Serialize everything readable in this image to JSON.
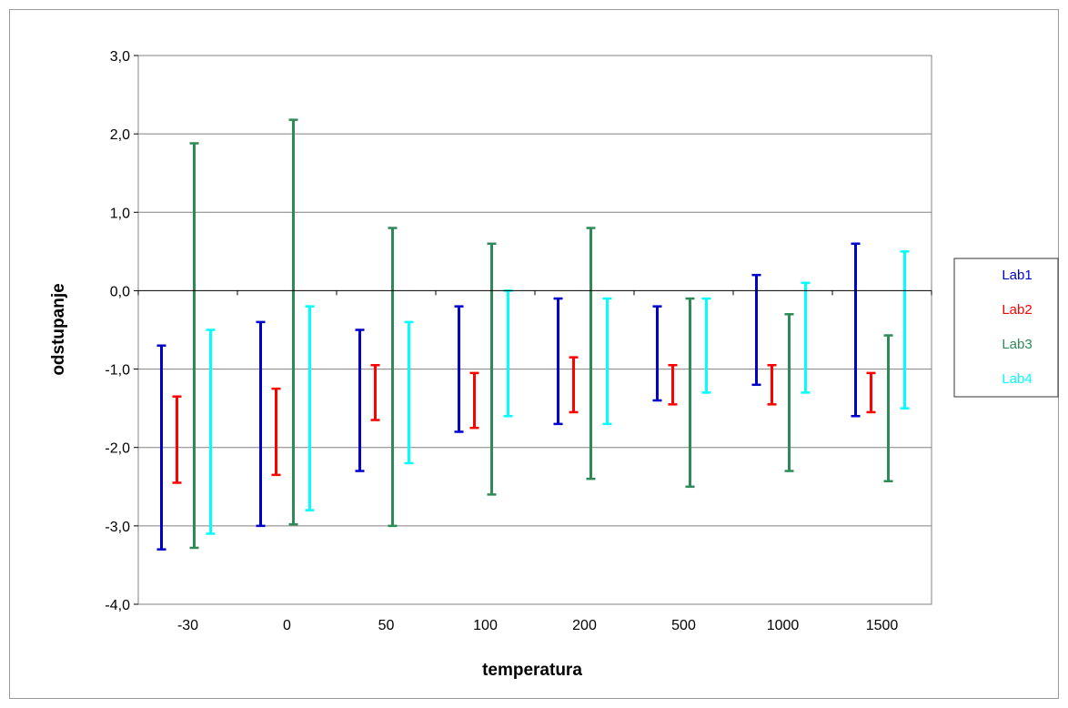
{
  "chart_data": {
    "type": "error-bar",
    "title": "",
    "xlabel": "temperatura",
    "ylabel": "odstupanje",
    "categories": [
      "-30",
      "0",
      "50",
      "100",
      "200",
      "500",
      "1000",
      "1500"
    ],
    "ylim": [
      -4.0,
      3.0
    ],
    "y_ticks": [
      "3,0",
      "2,0",
      "1,0",
      "0,0",
      "-1,0",
      "-2,0",
      "-3,0",
      "-4,0"
    ],
    "y_tick_values": [
      3,
      2,
      1,
      0,
      -1,
      -2,
      -3,
      -4
    ],
    "grid": true,
    "legend_position": "right",
    "series": [
      {
        "name": "Lab1",
        "color": "#0000CC",
        "low": [
          -3.3,
          -3.0,
          -2.3,
          -1.8,
          -1.7,
          -1.4,
          -1.2,
          -1.6
        ],
        "high": [
          -0.7,
          -0.4,
          -0.5,
          -0.2,
          -0.1,
          -0.2,
          0.2,
          0.6
        ]
      },
      {
        "name": "Lab2",
        "color": "#FF0000",
        "low": [
          -2.45,
          -2.35,
          -1.65,
          -1.75,
          -1.55,
          -1.45,
          -1.45,
          -1.55
        ],
        "high": [
          -1.35,
          -1.25,
          -0.95,
          -1.05,
          -0.85,
          -0.95,
          -0.95,
          -1.05
        ]
      },
      {
        "name": "Lab3",
        "color": "#2E8B57",
        "low": [
          -3.28,
          -2.98,
          -3.0,
          -2.6,
          -2.4,
          -2.5,
          -2.3,
          -2.43
        ],
        "high": [
          1.88,
          2.18,
          0.8,
          0.6,
          0.8,
          -0.1,
          -0.3,
          -0.57
        ]
      },
      {
        "name": "Lab4",
        "color": "#00FFFF",
        "low": [
          -3.1,
          -2.8,
          -2.2,
          -1.6,
          -1.7,
          -1.3,
          -1.3,
          -1.5
        ],
        "high": [
          -0.5,
          -0.2,
          -0.4,
          0.0,
          -0.1,
          -0.1,
          0.1,
          0.5
        ]
      }
    ]
  }
}
